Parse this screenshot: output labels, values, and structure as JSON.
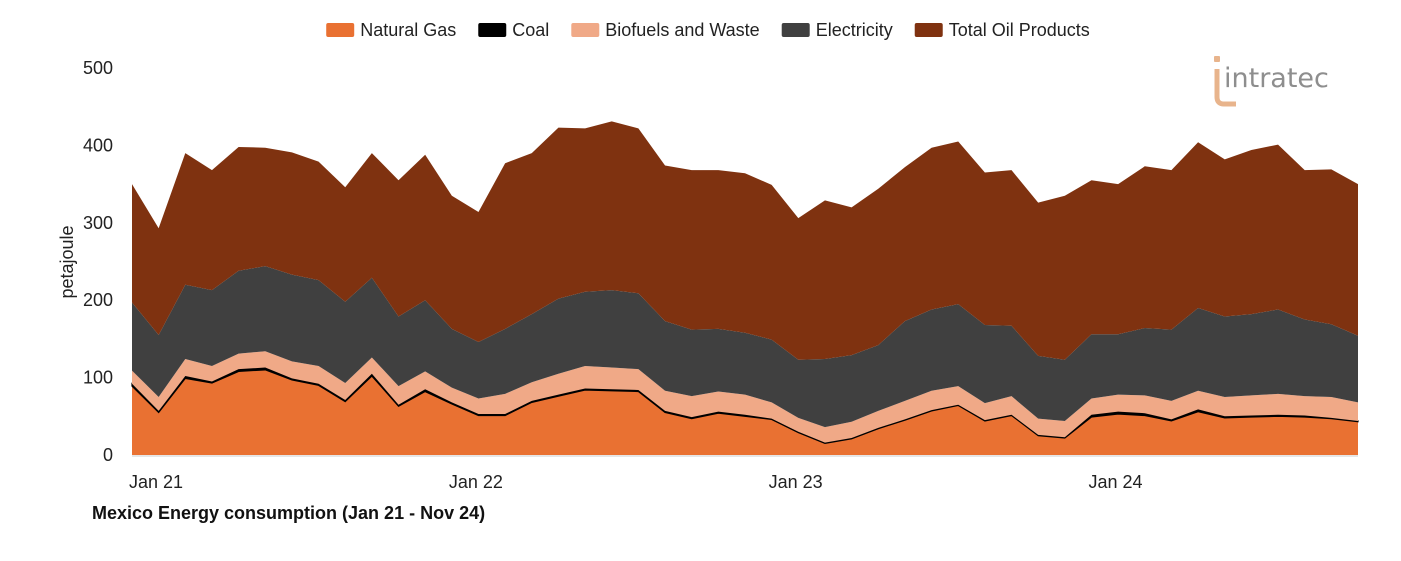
{
  "caption": "Mexico Energy consumption (Jan 21 - Nov 24)",
  "logo": {
    "text": "intratec",
    "color": "#8e8e8e",
    "accent": "#e8b48c"
  },
  "chart_data": {
    "type": "area",
    "stacked": true,
    "title": "",
    "xlabel": "",
    "ylabel": "petajoule",
    "ylim": [
      0,
      500
    ],
    "yticks": [
      0,
      100,
      200,
      300,
      400,
      500
    ],
    "grid": false,
    "legend_position": "top-center",
    "x": [
      "2021-01",
      "2021-02",
      "2021-03",
      "2021-04",
      "2021-05",
      "2021-06",
      "2021-07",
      "2021-08",
      "2021-09",
      "2021-10",
      "2021-11",
      "2021-12",
      "2022-01",
      "2022-02",
      "2022-03",
      "2022-04",
      "2022-05",
      "2022-06",
      "2022-07",
      "2022-08",
      "2022-09",
      "2022-10",
      "2022-11",
      "2022-12",
      "2023-01",
      "2023-02",
      "2023-03",
      "2023-04",
      "2023-05",
      "2023-06",
      "2023-07",
      "2023-08",
      "2023-09",
      "2023-10",
      "2023-11",
      "2023-12",
      "2024-01",
      "2024-02",
      "2024-03",
      "2024-04",
      "2024-05",
      "2024-06",
      "2024-07",
      "2024-08",
      "2024-09",
      "2024-10",
      "2024-11"
    ],
    "xticks": [
      {
        "index": 0,
        "label": "Jan 21"
      },
      {
        "index": 12,
        "label": "Jan 22"
      },
      {
        "index": 24,
        "label": "Jan 23"
      },
      {
        "index": 36,
        "label": "Jan 24"
      }
    ],
    "legend": [
      {
        "name": "Natural Gas",
        "color": "#e97132"
      },
      {
        "name": "Coal",
        "color": "#000000"
      },
      {
        "name": "Biofuels and Waste",
        "color": "#f0a987"
      },
      {
        "name": "Electricity",
        "color": "#404040"
      },
      {
        "name": "Total Oil Products",
        "color": "#7f3210"
      }
    ],
    "series": [
      {
        "name": "Natural Gas",
        "color": "#e97132",
        "values": [
          89,
          55,
          99,
          93,
          108,
          110,
          97,
          90,
          69,
          102,
          63,
          82,
          66,
          51,
          51,
          68,
          76,
          84,
          83,
          82,
          55,
          47,
          54,
          50,
          46,
          29,
          15,
          21,
          34,
          45,
          57,
          64,
          44,
          51,
          25,
          22,
          49,
          53,
          51,
          44,
          56,
          48,
          49,
          50,
          49,
          47,
          43
        ]
      },
      {
        "name": "Coal",
        "color": "#000000",
        "values": [
          3,
          2,
          3,
          2,
          3,
          3,
          2,
          2,
          2,
          3,
          2,
          3,
          2,
          2,
          2,
          2,
          2,
          2,
          2,
          2,
          2,
          2,
          2,
          2,
          1,
          1,
          1,
          1,
          1,
          1,
          1,
          1,
          1,
          1,
          1,
          1,
          3,
          3,
          3,
          2,
          3,
          2,
          2,
          2,
          2,
          1,
          1
        ]
      },
      {
        "name": "Biofuels and Waste",
        "color": "#f0a987",
        "values": [
          17,
          18,
          22,
          20,
          20,
          21,
          22,
          23,
          22,
          21,
          24,
          23,
          19,
          20,
          26,
          24,
          27,
          29,
          28,
          27,
          26,
          27,
          26,
          26,
          21,
          18,
          20,
          21,
          22,
          24,
          25,
          24,
          22,
          24,
          21,
          21,
          21,
          22,
          23,
          24,
          24,
          25,
          26,
          27,
          25,
          27,
          24
        ]
      },
      {
        "name": "Electricity",
        "color": "#404040",
        "values": [
          88,
          80,
          96,
          98,
          107,
          110,
          112,
          111,
          105,
          103,
          90,
          92,
          76,
          73,
          84,
          88,
          97,
          96,
          100,
          98,
          90,
          86,
          81,
          80,
          81,
          75,
          88,
          86,
          85,
          103,
          105,
          106,
          101,
          91,
          81,
          79,
          83,
          78,
          87,
          92,
          107,
          104,
          105,
          109,
          99,
          94,
          86
        ]
      },
      {
        "name": "Total Oil Products",
        "color": "#7f3210",
        "values": [
          153,
          138,
          170,
          155,
          160,
          153,
          158,
          153,
          148,
          161,
          176,
          188,
          172,
          168,
          214,
          208,
          221,
          211,
          218,
          213,
          201,
          206,
          205,
          206,
          200,
          183,
          205,
          191,
          202,
          199,
          209,
          210,
          197,
          201,
          198,
          212,
          199,
          194,
          209,
          206,
          214,
          203,
          212,
          213,
          193,
          200,
          196
        ]
      }
    ]
  }
}
